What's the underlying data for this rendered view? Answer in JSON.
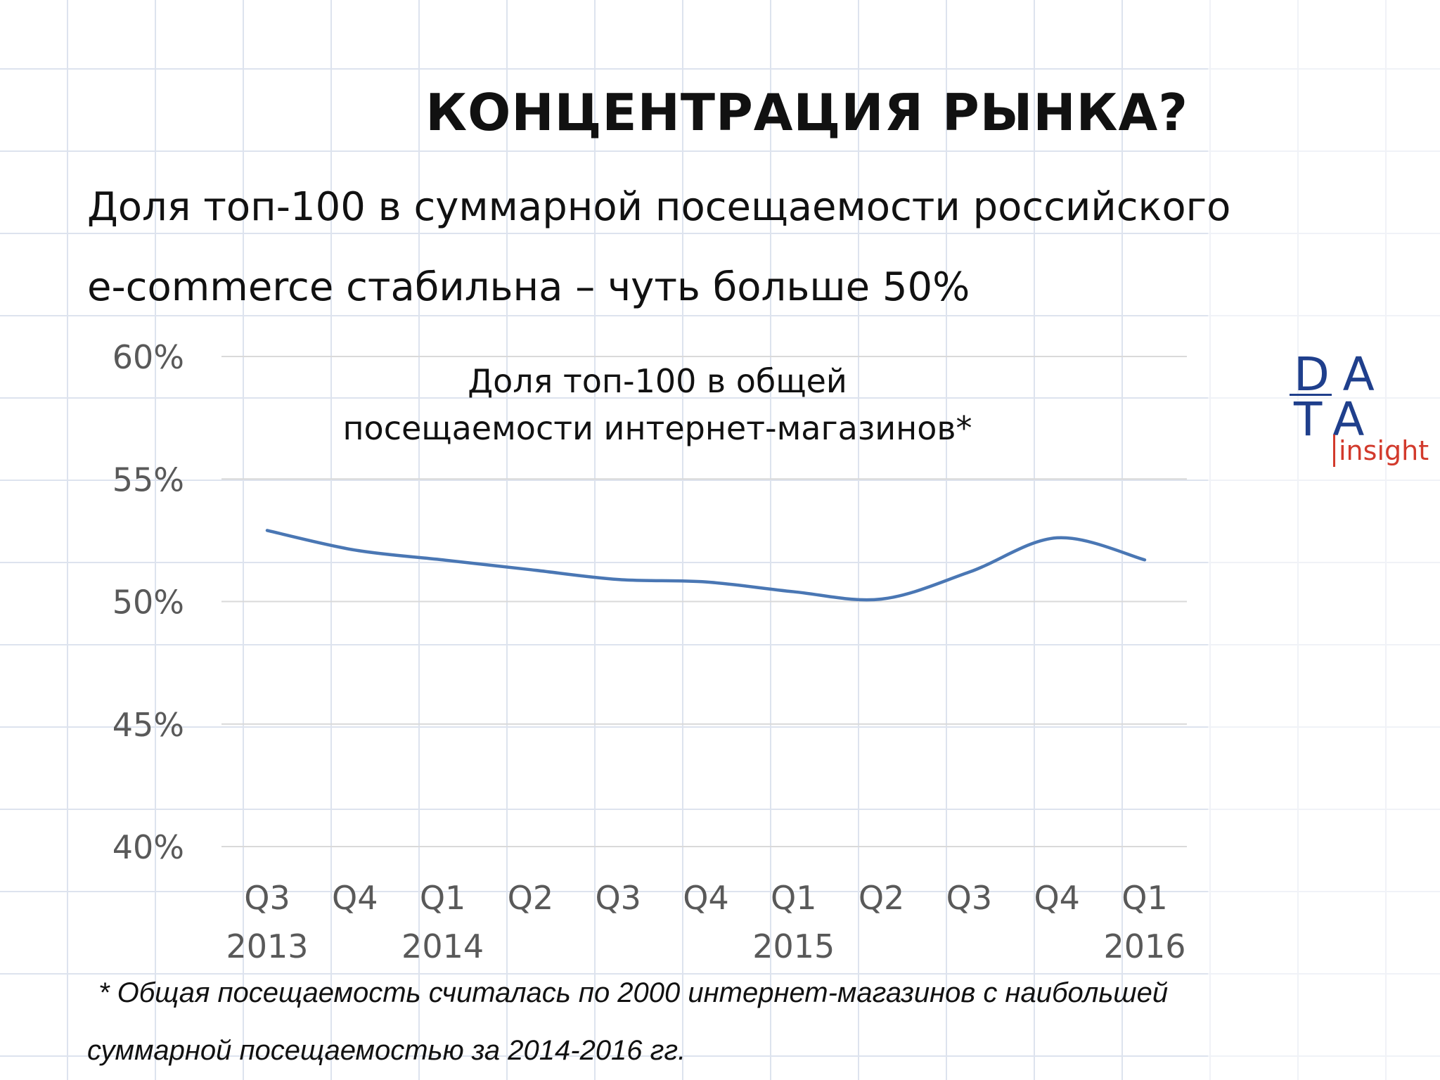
{
  "slide": {
    "title": "КОНЦЕНТРАЦИЯ РЫНКА?",
    "subtitle_line1": "Доля топ-100 в суммарной посещаемости российского",
    "subtitle_line2": "e-commerce стабильна – чуть больше 50%",
    "footnote_line1": "* Общая посещаемость считалась по 2000 интернет-магазинов с наибольшей",
    "footnote_line2": "суммарной посещаемостью за 2014-2016 гг."
  },
  "logo": {
    "row1": "DA",
    "row2": "TA",
    "tagline": "insight"
  },
  "colors": {
    "line": "#4a77b4",
    "grid": "#d9d9d9",
    "axis_text": "#595959",
    "logo_blue": "#1f3f8c",
    "logo_red": "#d23a2c"
  },
  "chart_data": {
    "type": "line",
    "title_line1": "Доля топ-100 в общей",
    "title_line2": "посещаемости интернет-магазинов*",
    "categories": [
      {
        "quarter": "Q3",
        "year": "2013"
      },
      {
        "quarter": "Q4",
        "year": ""
      },
      {
        "quarter": "Q1",
        "year": "2014"
      },
      {
        "quarter": "Q2",
        "year": ""
      },
      {
        "quarter": "Q3",
        "year": ""
      },
      {
        "quarter": "Q4",
        "year": ""
      },
      {
        "quarter": "Q1",
        "year": "2015"
      },
      {
        "quarter": "Q2",
        "year": ""
      },
      {
        "quarter": "Q3",
        "year": ""
      },
      {
        "quarter": "Q4",
        "year": ""
      },
      {
        "quarter": "Q1",
        "year": "2016"
      }
    ],
    "values": [
      52.9,
      52.1,
      51.7,
      51.3,
      50.9,
      50.8,
      50.4,
      50.1,
      51.2,
      52.6,
      51.7
    ],
    "ylim": [
      40,
      60
    ],
    "yticks": [
      {
        "value": 40,
        "label": "40%"
      },
      {
        "value": 45,
        "label": "45%"
      },
      {
        "value": 50,
        "label": "50%"
      },
      {
        "value": 55,
        "label": "55%"
      },
      {
        "value": 60,
        "label": "60%"
      }
    ],
    "grid": true,
    "legend": "none"
  }
}
